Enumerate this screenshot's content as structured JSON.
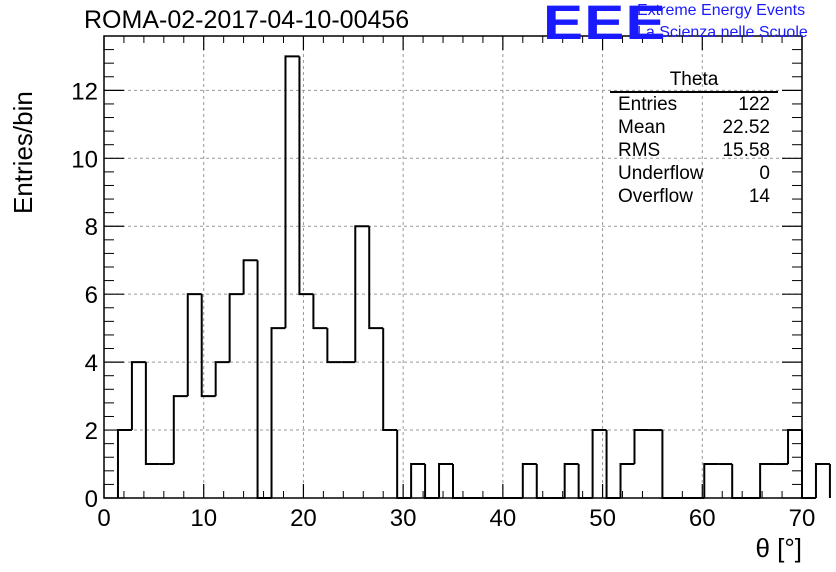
{
  "chart_title": "ROMA-02-2017-04-10-00456",
  "logo": {
    "mark": "EEE",
    "line1": "Extreme Energy Events",
    "line2": "La Scienza nelle Scuole",
    "color": "#1a1aff"
  },
  "stats_box": {
    "name": "Theta",
    "rows": [
      {
        "label": "Entries",
        "value": "122"
      },
      {
        "label": "Mean",
        "value": "22.52"
      },
      {
        "label": "RMS",
        "value": "15.58"
      },
      {
        "label": "Underflow",
        "value": "0"
      },
      {
        "label": "Overflow",
        "value": "14"
      }
    ]
  },
  "chart_data": {
    "type": "bar",
    "style": "step-histogram",
    "title": "ROMA-02-2017-04-10-00456",
    "xlabel": "θ [°]",
    "ylabel": "Entries/bin",
    "xlim": [
      0,
      70
    ],
    "ylim": [
      0,
      13.6
    ],
    "xticks": [
      "0",
      "10",
      "20",
      "30",
      "40",
      "50",
      "60",
      "70"
    ],
    "yticks": [
      "0",
      "2",
      "4",
      "6",
      "8",
      "10",
      "12"
    ],
    "grid": true,
    "bin_width": 1.4,
    "bin_edges_start": 1.4,
    "series": [
      {
        "values": [
          2,
          4,
          1,
          1,
          3,
          6,
          3,
          4,
          6,
          7,
          0,
          5,
          13,
          6,
          5,
          4,
          4,
          8,
          5,
          2,
          0,
          1,
          0,
          1,
          0,
          0,
          0,
          0,
          0,
          1,
          0,
          0,
          1,
          0,
          2,
          0,
          1,
          2,
          2,
          0,
          0,
          0,
          1,
          1,
          0,
          0,
          1,
          1,
          2,
          0,
          1
        ]
      }
    ],
    "color": "#000000"
  }
}
